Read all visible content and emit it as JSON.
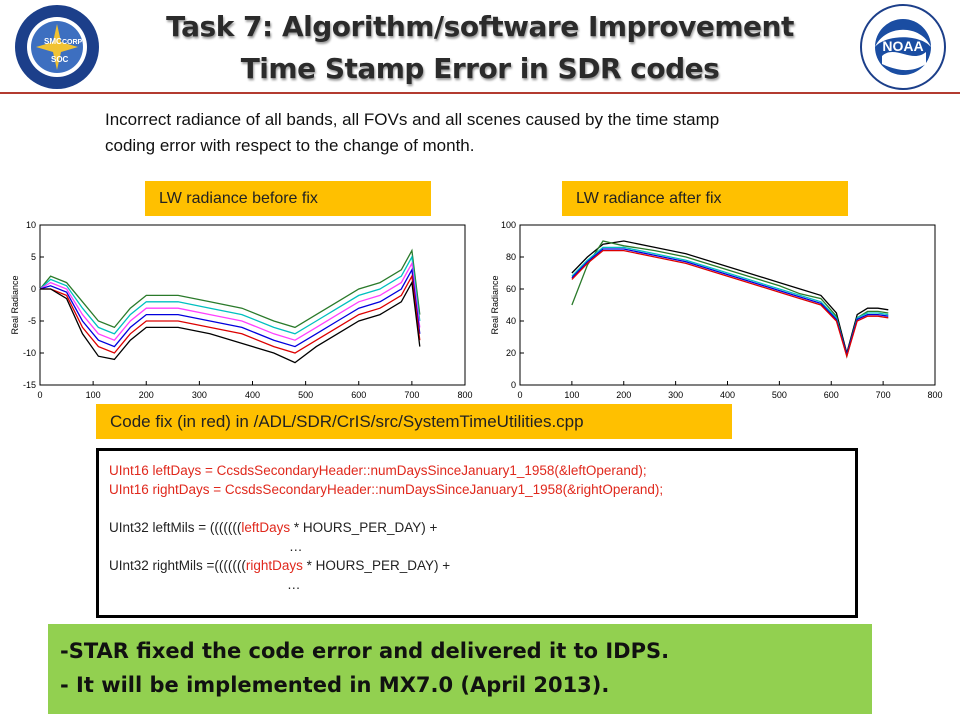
{
  "title": {
    "line1": "Task 7: Algorithm/software Improvement",
    "line2": "Time Stamp Error in SDR codes"
  },
  "logos": {
    "left": {
      "text": "NOAA NESDIS STAR",
      "icon": "noaa-nesdis-star-seal",
      "inner": [
        "SMC",
        "CORP",
        "SOC"
      ]
    },
    "right": {
      "text": "NOAA",
      "icon": "noaa-seal"
    }
  },
  "intro": {
    "line1": "Incorrect radiance of all bands, all FOVs and all scenes caused by the time stamp",
    "line2": "coding error with respect to the change of month."
  },
  "labels": {
    "before": "LW radiance before fix",
    "after": "LW radiance after fix",
    "code_fix": "Code fix (in red) in /ADL/SDR/CrIS/src/SystemTimeUtilities.cpp"
  },
  "code": {
    "line1": "UInt16 leftDays = CcsdsSecondaryHeader::numDaysSinceJanuary1_1958(&leftOperand);",
    "line2": "UInt16 rightDays = CcsdsSecondaryHeader::numDaysSinceJanuary1_1958(&rightOperand);",
    "line3_pre": "UInt32 leftMils = (((((((",
    "line3_red": "leftDays",
    "line3_post": " * HOURS_PER_DAY) +",
    "line4": "…",
    "line5_pre": "UInt32 rightMils =(((((((",
    "line5_red": "rightDays",
    "line5_post": " * HOURS_PER_DAY) +",
    "line6": "…"
  },
  "conclusion": {
    "line1": "-STAR fixed the code error and delivered it to IDPS.",
    "line2": "- It will be implemented in MX7.0 (April 2013)."
  },
  "colors": {
    "accent_line": "#b33b30",
    "label_bg": "#ffc000",
    "conclusion_bg": "#92d050",
    "code_red": "#e0281c"
  },
  "chart_data": [
    {
      "type": "line",
      "title": "",
      "xlabel": "",
      "ylabel": "Real Radiance",
      "xlim": [
        0,
        800
      ],
      "ylim": [
        -15,
        10
      ],
      "xticks": [
        0,
        100,
        200,
        300,
        400,
        500,
        600,
        700,
        800
      ],
      "yticks": [
        10,
        5,
        0,
        -5,
        -10,
        -15
      ],
      "x": [
        0,
        20,
        50,
        80,
        110,
        140,
        170,
        200,
        260,
        320,
        380,
        440,
        480,
        520,
        560,
        600,
        640,
        680,
        700,
        715
      ],
      "series": [
        {
          "color": "#2a7a2a",
          "values": [
            0,
            2,
            1,
            -2,
            -5,
            -6,
            -3,
            -1,
            -1,
            -2,
            -3,
            -5,
            -6,
            -4,
            -2,
            0,
            1,
            3,
            6,
            -4
          ]
        },
        {
          "color": "#00c0c0",
          "values": [
            0,
            1.5,
            0.5,
            -3,
            -6,
            -7,
            -4,
            -2,
            -2,
            -3,
            -4,
            -6,
            -7,
            -5,
            -3,
            -1,
            0,
            2,
            5,
            -5
          ]
        },
        {
          "color": "#ff40ff",
          "values": [
            0,
            1,
            0,
            -4,
            -7,
            -8,
            -5,
            -3,
            -3,
            -4,
            -5,
            -7,
            -8,
            -6,
            -4,
            -2,
            -1,
            1,
            4,
            -6
          ]
        },
        {
          "color": "#0000dd",
          "values": [
            0,
            0.5,
            -0.5,
            -5,
            -8,
            -9,
            -6,
            -4,
            -4,
            -5,
            -6,
            -8,
            -9,
            -7,
            -5,
            -3,
            -2,
            0,
            3,
            -7
          ]
        },
        {
          "color": "#dd0000",
          "values": [
            0,
            0,
            -1,
            -6,
            -9,
            -10,
            -7,
            -5,
            -5,
            -6,
            -7,
            -9,
            -10,
            -8,
            -6,
            -4,
            -3,
            -1,
            2,
            -8
          ]
        },
        {
          "color": "#000000",
          "values": [
            0,
            0,
            -1.5,
            -7,
            -10.5,
            -11,
            -8,
            -6,
            -6,
            -7,
            -8.5,
            -10,
            -11.5,
            -9,
            -7,
            -5,
            -4,
            -2,
            1,
            -9
          ]
        }
      ]
    },
    {
      "type": "line",
      "title": "",
      "xlabel": "",
      "ylabel": "Real Radiance",
      "xlim": [
        0,
        800
      ],
      "ylim": [
        0,
        100
      ],
      "xticks": [
        0,
        100,
        200,
        300,
        400,
        500,
        600,
        700,
        800
      ],
      "yticks": [
        100,
        80,
        60,
        40,
        20,
        0
      ],
      "x": [
        100,
        130,
        160,
        200,
        260,
        320,
        380,
        440,
        500,
        540,
        580,
        610,
        630,
        650,
        670,
        690,
        710
      ],
      "series": [
        {
          "color": "#000000",
          "values": [
            70,
            80,
            88,
            90,
            86,
            82,
            76,
            70,
            64,
            60,
            56,
            45,
            20,
            44,
            48,
            48,
            47
          ]
        },
        {
          "color": "#2a7a2a",
          "values": [
            50,
            75,
            90,
            87,
            84,
            80,
            74,
            68,
            62,
            57,
            54,
            43,
            18,
            42,
            46,
            46,
            45
          ]
        },
        {
          "color": "#00c0c0",
          "values": [
            68,
            78,
            86,
            86,
            82,
            78,
            72,
            66,
            60,
            56,
            52,
            42,
            19,
            42,
            45,
            45,
            44
          ]
        },
        {
          "color": "#0000dd",
          "values": [
            67,
            77,
            85,
            85,
            81,
            77,
            71,
            65,
            59,
            55,
            51,
            41,
            19,
            41,
            44,
            44,
            43
          ]
        },
        {
          "color": "#dd0000",
          "values": [
            66,
            76,
            84,
            84,
            80,
            76,
            70,
            64,
            58,
            54,
            50,
            40,
            18,
            40,
            43,
            43,
            42
          ]
        }
      ]
    }
  ]
}
